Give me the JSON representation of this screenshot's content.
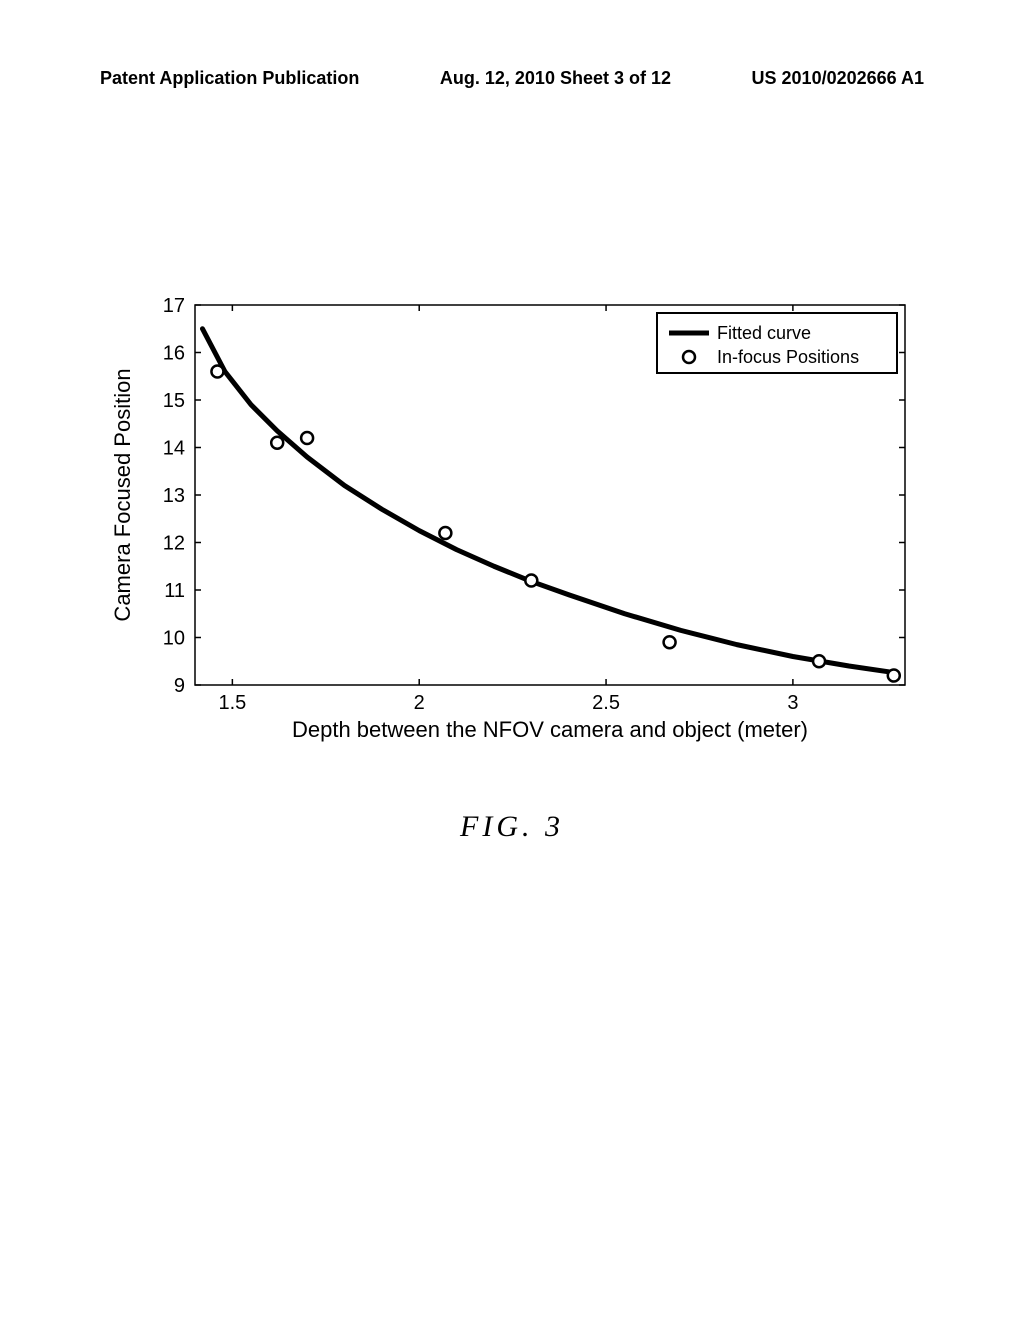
{
  "header": {
    "left": "Patent Application Publication",
    "center": "Aug. 12, 2010  Sheet 3 of 12",
    "right": "US 2010/0202666 A1"
  },
  "figure_label": "FIG. 3",
  "chart": {
    "type": "scatter_with_curve",
    "xlabel": "Depth between the NFOV camera and object (meter)",
    "ylabel": "Camera Focused Position",
    "xlim": [
      1.4,
      3.3
    ],
    "ylim": [
      9,
      17
    ],
    "xticks": [
      1.5,
      2,
      2.5,
      3
    ],
    "yticks": [
      9,
      10,
      11,
      12,
      13,
      14,
      15,
      16,
      17
    ],
    "background_color": "#ffffff",
    "axis_color": "#000000",
    "tick_length": 6,
    "axis_width": 1.5,
    "xlabel_fontsize": 22,
    "ylabel_fontsize": 22,
    "tick_fontsize": 20,
    "legend": {
      "entries": [
        {
          "kind": "line",
          "label": "Fitted curve",
          "color": "#000000",
          "width": 5
        },
        {
          "kind": "marker",
          "label": "In-focus Positions",
          "stroke": "#000000",
          "fill": "#ffffff",
          "stroke_width": 2.5,
          "radius": 6
        }
      ],
      "border_color": "#000000",
      "border_width": 2,
      "bg": "#ffffff",
      "fontsize": 18,
      "position": "top-right"
    },
    "curve": {
      "color": "#000000",
      "width": 5,
      "points": [
        [
          1.42,
          16.5
        ],
        [
          1.48,
          15.6
        ],
        [
          1.55,
          14.9
        ],
        [
          1.62,
          14.35
        ],
        [
          1.7,
          13.8
        ],
        [
          1.8,
          13.2
        ],
        [
          1.9,
          12.7
        ],
        [
          2.0,
          12.25
        ],
        [
          2.1,
          11.85
        ],
        [
          2.2,
          11.5
        ],
        [
          2.3,
          11.18
        ],
        [
          2.4,
          10.9
        ],
        [
          2.55,
          10.5
        ],
        [
          2.7,
          10.15
        ],
        [
          2.85,
          9.85
        ],
        [
          3.0,
          9.6
        ],
        [
          3.15,
          9.4
        ],
        [
          3.28,
          9.25
        ]
      ]
    },
    "markers": {
      "stroke": "#000000",
      "fill": "#ffffff",
      "stroke_width": 2.5,
      "radius": 6,
      "points": [
        [
          1.46,
          15.6
        ],
        [
          1.62,
          14.1
        ],
        [
          1.7,
          14.2
        ],
        [
          2.07,
          12.2
        ],
        [
          2.3,
          11.2
        ],
        [
          2.67,
          9.9
        ],
        [
          3.07,
          9.5
        ],
        [
          3.27,
          9.2
        ]
      ]
    }
  }
}
